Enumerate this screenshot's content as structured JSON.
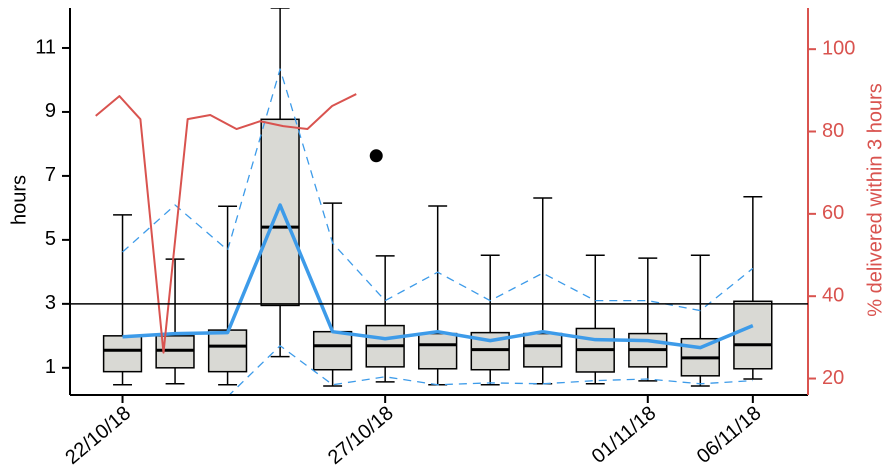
{
  "chart_data": {
    "type": "box",
    "y_label": "hours",
    "y2_label": "% delivered within 3 hours",
    "x": [
      0,
      1,
      2,
      3,
      4,
      5,
      6,
      7,
      8,
      9,
      10,
      11,
      12
    ],
    "xlim": [
      -1,
      13.05
    ],
    "xticks": [
      {
        "value": 0,
        "label": "22/10/18"
      },
      {
        "value": 5,
        "label": "27/10/18"
      },
      {
        "value": 10,
        "label": "01/11/18"
      },
      {
        "value": 12,
        "label": "06/11/18"
      }
    ],
    "ylim": [
      0.15,
      12.25
    ],
    "yticks": [
      1,
      3,
      5,
      7,
      9,
      11
    ],
    "y2lim": [
      16,
      110
    ],
    "y2ticks": [
      20,
      40,
      60,
      80,
      100
    ],
    "y2_color": "#d9534f",
    "box_color": "#d9d9d4",
    "box": {
      "whislo": [
        0.47,
        0.5,
        0.47,
        1.35,
        0.43,
        0.56,
        0.47,
        0.47,
        0.5,
        0.5,
        0.59,
        0.43,
        0.65
      ],
      "q1": [
        0.88,
        1.0,
        0.88,
        2.95,
        0.94,
        1.03,
        0.97,
        0.94,
        1.03,
        0.87,
        1.03,
        0.75,
        0.97
      ],
      "med": [
        1.55,
        1.55,
        1.68,
        5.4,
        1.69,
        1.69,
        1.72,
        1.57,
        1.69,
        1.57,
        1.57,
        1.31,
        1.72
      ],
      "q3": [
        2.0,
        2.0,
        2.18,
        8.77,
        2.13,
        2.32,
        2.07,
        2.1,
        2.07,
        2.23,
        2.07,
        1.91,
        3.08
      ],
      "whishi": [
        5.78,
        4.4,
        6.05,
        12.25,
        6.15,
        4.5,
        6.06,
        4.52,
        6.31,
        4.52,
        4.43,
        4.52,
        6.35
      ]
    },
    "mean": {
      "color": "#3d9be9",
      "values": [
        1.97,
        2.07,
        2.1,
        6.09,
        2.13,
        1.91,
        2.13,
        1.85,
        2.13,
        1.88,
        1.85,
        1.63,
        2.32
      ]
    },
    "upper": {
      "color": "#3d9be9",
      "dashed": true,
      "values": [
        4.62,
        6.09,
        4.68,
        10.34,
        4.9,
        3.1,
        3.99,
        3.1,
        3.96,
        3.1,
        3.1,
        2.79,
        4.11
      ]
    },
    "lower": {
      "color": "#3d9be9",
      "dashed": true,
      "values": [
        null,
        null,
        0.1,
        1.69,
        0.47,
        0.72,
        0.47,
        0.53,
        0.5,
        0.6,
        0.65,
        0.5,
        0.6
      ]
    },
    "hline": 3,
    "share": {
      "color": "#d9534f",
      "axis": "y2",
      "x": [
        -0.51,
        -0.06,
        0.34,
        0.78,
        1.24,
        1.67,
        2.17,
        2.62,
        3.06,
        3.52,
        3.99,
        4.45
      ],
      "values": [
        83.8,
        88.6,
        83.0,
        26.3,
        83.0,
        84.0,
        80.6,
        82.5,
        81.3,
        80.6,
        86.2,
        89.1
      ]
    },
    "point": {
      "color": "#000000",
      "axis": "y2",
      "x": 4.83,
      "value": 74.1
    }
  }
}
